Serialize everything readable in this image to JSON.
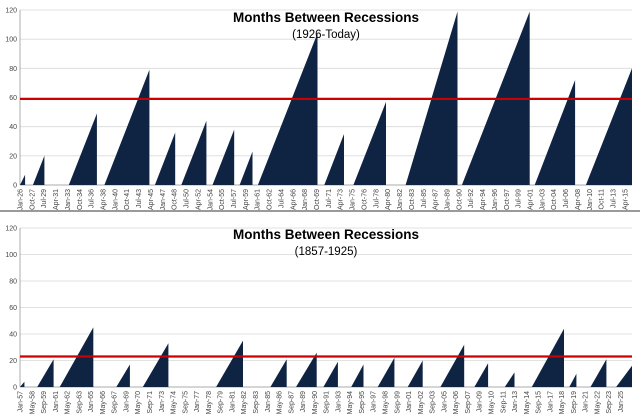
{
  "chart_data": [
    {
      "type": "area",
      "title": "Months Between Recessions",
      "subtitle": "(1926-Today)",
      "ylim": [
        0,
        120
      ],
      "yticks": [
        0,
        20,
        40,
        60,
        80,
        100,
        120
      ],
      "reference_line": {
        "value": 59,
        "color": "#cc0000"
      },
      "fill_color": "#0f2342",
      "x_start_year": 1926,
      "x_end_year": 2016.3,
      "x_tick_start": "Jan-26",
      "x_tick_step_months": 21,
      "xticks": [
        "Jan-26",
        "Oct-27",
        "Jul-29",
        "Apr-31",
        "Jan-33",
        "Oct-34",
        "Jul-36",
        "Apr-38",
        "Jan-40",
        "Oct-41",
        "Jul-43",
        "Apr-45",
        "Jan-47",
        "Oct-48",
        "Jul-50",
        "Apr-52",
        "Jan-54",
        "Oct-55",
        "Jul-57",
        "Apr-59",
        "Jan-61",
        "Oct-62",
        "Jul-64",
        "Apr-66",
        "Jan-68",
        "Oct-69",
        "Jul-71",
        "Apr-73",
        "Jan-75",
        "Oct-76",
        "Jul-78",
        "Apr-80",
        "Jan-82",
        "Oct-83",
        "Jul-85",
        "Apr-87",
        "Jan-89",
        "Oct-90",
        "Jul-92",
        "Apr-94",
        "Jan-96",
        "Oct-97",
        "Jul-99",
        "Apr-01",
        "Jan-03",
        "Oct-04",
        "Jul-06",
        "Apr-08",
        "Jan-10",
        "Oct-11",
        "Jul-13",
        "Apr-15"
      ],
      "series": [
        {
          "start": 1926.0,
          "end": 1926.75,
          "peak": 7
        },
        {
          "start": 1927.9,
          "end": 1929.6,
          "peak": 20
        },
        {
          "start": 1933.2,
          "end": 1937.35,
          "peak": 49
        },
        {
          "start": 1938.45,
          "end": 1945.1,
          "peak": 79
        },
        {
          "start": 1945.9,
          "end": 1948.9,
          "peak": 36
        },
        {
          "start": 1949.8,
          "end": 1953.5,
          "peak": 44
        },
        {
          "start": 1954.4,
          "end": 1957.6,
          "peak": 38
        },
        {
          "start": 1958.4,
          "end": 1960.3,
          "peak": 23
        },
        {
          "start": 1961.1,
          "end": 1969.9,
          "peak": 104
        },
        {
          "start": 1970.9,
          "end": 1973.8,
          "peak": 35
        },
        {
          "start": 1975.2,
          "end": 1980.0,
          "peak": 57
        },
        {
          "start": 1982.9,
          "end": 1990.55,
          "peak": 119
        },
        {
          "start": 1991.2,
          "end": 2001.2,
          "peak": 119
        },
        {
          "start": 2001.95,
          "end": 2007.9,
          "peak": 72
        },
        {
          "start": 2009.5,
          "end": 2016.3,
          "peak": 80
        }
      ]
    },
    {
      "type": "area",
      "title": "Months Between Recessions",
      "subtitle": "(1857-1925)",
      "ylim": [
        0,
        120
      ],
      "yticks": [
        0,
        20,
        40,
        60,
        80,
        100,
        120
      ],
      "reference_line": {
        "value": 23,
        "color": "#cc0000"
      },
      "fill_color": "#0f2342",
      "x_start_year": 1857,
      "x_end_year": 1926.3,
      "x_tick_start": "Jan-57",
      "x_tick_step_months": 16,
      "xticks": [
        "Jan-57",
        "May-58",
        "Sep-59",
        "Jan-61",
        "May-62",
        "Sep-63",
        "Jan-65",
        "May-66",
        "Sep-67",
        "Jan-69",
        "May-70",
        "Sep-71",
        "Jan-73",
        "May-74",
        "Sep-75",
        "Jan-77",
        "May-78",
        "Sep-79",
        "Jan-81",
        "May-82",
        "Sep-83",
        "Jan-85",
        "May-86",
        "Sep-87",
        "Jan-89",
        "May-90",
        "Sep-91",
        "Jan-93",
        "May-94",
        "Sep-95",
        "Jan-97",
        "May-98",
        "Sep-99",
        "Jan-01",
        "May-02",
        "Sep-03",
        "Jan-05",
        "May-06",
        "Sep-07",
        "Jan-09",
        "May-10",
        "Sep-11",
        "Jan-13",
        "May-14",
        "Sep-15",
        "Jan-17",
        "May-18",
        "Sep-19",
        "Jan-21",
        "May-22",
        "Sep-23",
        "Jan-25"
      ],
      "series": [
        {
          "start": 1857.0,
          "end": 1857.5,
          "peak": 4
        },
        {
          "start": 1858.95,
          "end": 1860.8,
          "peak": 21
        },
        {
          "start": 1861.5,
          "end": 1865.3,
          "peak": 45
        },
        {
          "start": 1867.9,
          "end": 1869.45,
          "peak": 17
        },
        {
          "start": 1870.9,
          "end": 1873.8,
          "peak": 33
        },
        {
          "start": 1879.2,
          "end": 1882.25,
          "peak": 35
        },
        {
          "start": 1885.35,
          "end": 1887.2,
          "peak": 21
        },
        {
          "start": 1888.25,
          "end": 1890.6,
          "peak": 26
        },
        {
          "start": 1891.35,
          "end": 1893.0,
          "peak": 19
        },
        {
          "start": 1894.5,
          "end": 1895.9,
          "peak": 17
        },
        {
          "start": 1897.5,
          "end": 1899.4,
          "peak": 22
        },
        {
          "start": 1900.9,
          "end": 1902.6,
          "peak": 20
        },
        {
          "start": 1904.6,
          "end": 1907.3,
          "peak": 32
        },
        {
          "start": 1908.45,
          "end": 1910.0,
          "peak": 18
        },
        {
          "start": 1911.9,
          "end": 1913.0,
          "peak": 11
        },
        {
          "start": 1914.95,
          "end": 1918.6,
          "peak": 44
        },
        {
          "start": 1919.2,
          "end": 1920.0,
          "peak": 10
        },
        {
          "start": 1921.6,
          "end": 1923.4,
          "peak": 21
        },
        {
          "start": 1924.5,
          "end": 1926.3,
          "peak": 16
        }
      ]
    }
  ]
}
